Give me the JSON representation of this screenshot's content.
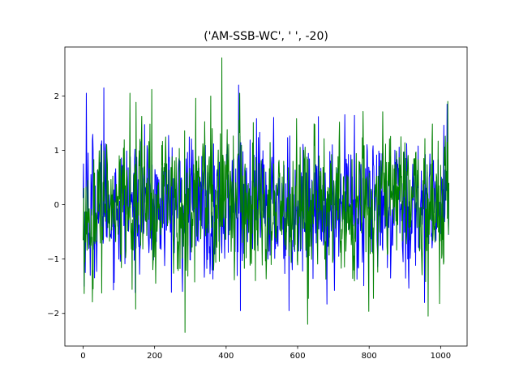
{
  "chart_data": {
    "type": "line",
    "title": "('AM-SSB-WC', '  ', -20)",
    "xlabel": "",
    "ylabel": "",
    "xlim": [
      -51,
      1074
    ],
    "ylim": [
      -2.6,
      2.9
    ],
    "xticks": [
      0,
      200,
      400,
      600,
      800,
      1000
    ],
    "xtick_labels": [
      "0",
      "200",
      "400",
      "600",
      "800",
      "1000"
    ],
    "yticks": [
      -2,
      -1,
      0,
      1,
      2
    ],
    "ytick_labels": [
      "−2",
      "−1",
      "0",
      "1",
      "2"
    ],
    "grid": false,
    "legend": "none",
    "n_points": 1024,
    "series": [
      {
        "color": "#0000ff",
        "description_stats": {
          "min": -1.95,
          "max": 2.2,
          "std": 0.6
        },
        "key_points": [
          {
            "x": 1,
            "y": 0.75
          },
          {
            "x": 3,
            "y": -1.5
          },
          {
            "x": 9,
            "y": 2.05
          },
          {
            "x": 14,
            "y": 0.95
          },
          {
            "x": 20,
            "y": -1.3
          },
          {
            "x": 58,
            "y": 2.15
          },
          {
            "x": 440,
            "y": -1.95
          },
          {
            "x": 576,
            "y": -1.95
          },
          {
            "x": 435,
            "y": 2.2
          },
          {
            "x": 955,
            "y": -1.8
          },
          {
            "x": 1018,
            "y": 1.85
          },
          {
            "x": 1023,
            "y": 0.3
          }
        ]
      },
      {
        "color": "#008000",
        "description_stats": {
          "min": -2.35,
          "max": 2.7,
          "std": 0.65
        },
        "key_points": [
          {
            "x": 2,
            "y": 0.3
          },
          {
            "x": 28,
            "y": -1.55
          },
          {
            "x": 131,
            "y": 2.05
          },
          {
            "x": 147,
            "y": -1.92
          },
          {
            "x": 192,
            "y": 2.12
          },
          {
            "x": 285,
            "y": -2.35
          },
          {
            "x": 388,
            "y": 2.7
          },
          {
            "x": 438,
            "y": 2.05
          },
          {
            "x": 628,
            "y": -2.2
          },
          {
            "x": 965,
            "y": -2.05
          },
          {
            "x": 1020,
            "y": 1.9
          },
          {
            "x": 1023,
            "y": 0.4
          }
        ]
      }
    ]
  }
}
